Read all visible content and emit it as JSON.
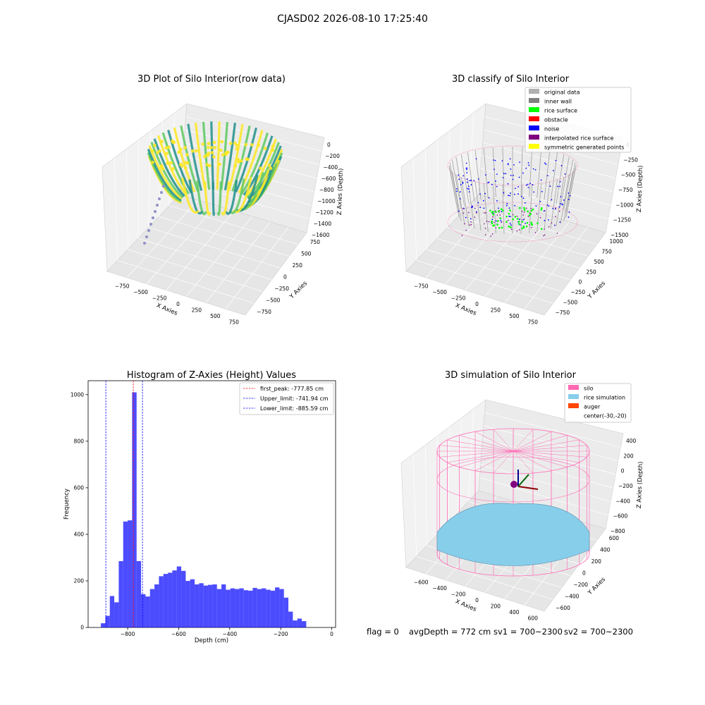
{
  "figure": {
    "title": "CJASD02 2026-08-10 17:25:40",
    "status": {
      "flag": "flag = 0",
      "avg_depth": "avgDepth = 772 cm",
      "sv1": "sv1 = 700~2300",
      "sv2": "sv2 = 700~2300"
    }
  },
  "panels": [
    {
      "id": "raw",
      "title": "3D Plot of Silo Interior(row data)",
      "xlabel": "X Axies",
      "ylabel": "Y Axies",
      "zlabel": "Z Axies (Depth)",
      "x_ticks": [
        "−750",
        "−500",
        "−250",
        "0",
        "250",
        "500",
        "750"
      ],
      "y_ticks": [
        "−750",
        "−500",
        "−250",
        "0",
        "250",
        "500",
        "750"
      ],
      "z_ticks": [
        "0",
        "−200",
        "−400",
        "−600",
        "−800",
        "−1000",
        "−1200",
        "−1400",
        "−1600"
      ],
      "colormap": [
        "#440154",
        "#21918c",
        "#5ec962",
        "#fde725"
      ]
    },
    {
      "id": "classify",
      "title": "3D classify of Silo Interior",
      "xlabel": "X Axies",
      "ylabel": "Y Axies",
      "zlabel": "Z Axies (Depth)",
      "x_ticks": [
        "−750",
        "−500",
        "−250",
        "0",
        "250",
        "500",
        "750"
      ],
      "y_ticks": [
        "−750",
        "−500",
        "−250",
        "0",
        "250",
        "500",
        "750",
        "1000"
      ],
      "z_ticks": [
        "0",
        "−250",
        "−500",
        "−750",
        "−1000",
        "−1250",
        "−1500"
      ],
      "legend": [
        {
          "label": "original data",
          "color": "#b0b0b0"
        },
        {
          "label": "inner wall",
          "color": "#808080"
        },
        {
          "label": "rice surface",
          "color": "#00ff00"
        },
        {
          "label": "obstacle",
          "color": "#ff0000"
        },
        {
          "label": "noise",
          "color": "#0000ff"
        },
        {
          "label": "interpolated rice surface",
          "color": "#800080"
        },
        {
          "label": "symmetric generated points",
          "color": "#ffff00"
        }
      ]
    },
    {
      "id": "simulation",
      "title": "3D simulation of Silo Interior",
      "xlabel": "X Axies",
      "ylabel": "Y Axies",
      "zlabel": "Z Axies (Depth)",
      "x_ticks": [
        "−600",
        "−400",
        "−200",
        "0",
        "200",
        "400",
        "600"
      ],
      "y_ticks": [
        "−600",
        "−400",
        "−200",
        "0",
        "200",
        "400",
        "600"
      ],
      "z_ticks": [
        "400",
        "200",
        "0",
        "−200",
        "−400",
        "−600",
        "−800"
      ],
      "legend": [
        {
          "label": "silo",
          "color": "#ff69b4"
        },
        {
          "label": "rice simulation",
          "color": "#87ceeb"
        },
        {
          "label": "auger",
          "color": "#ff4500"
        },
        {
          "label": "center(-30,-20)",
          "color": ""
        }
      ]
    }
  ],
  "chart_data": {
    "type": "bar",
    "title": "Histogram of Z-Axies (Height) Values",
    "xlabel": "Depth (cm)",
    "ylabel": "Frequency",
    "bar_color": "#0000ff",
    "xlim": [
      -955,
      15
    ],
    "ylim": [
      0,
      1060
    ],
    "x_ticks": [
      -800,
      -600,
      -400,
      -200,
      0
    ],
    "x_tick_labels": [
      "−800",
      "−600",
      "−400",
      "−200",
      "0"
    ],
    "y_ticks": [
      0,
      200,
      400,
      600,
      800,
      1000
    ],
    "bin_width": 17.5,
    "bin_start": -905,
    "values": [
      18,
      50,
      135,
      108,
      285,
      455,
      460,
      1010,
      285,
      143,
      133,
      165,
      185,
      220,
      230,
      235,
      245,
      262,
      243,
      200,
      207,
      185,
      190,
      180,
      183,
      185,
      165,
      185,
      162,
      168,
      165,
      168,
      160,
      158,
      170,
      165,
      168,
      162,
      158,
      172,
      165,
      128,
      68,
      30,
      38,
      27
    ],
    "lines": [
      {
        "name": "first_peak: -777.85 cm",
        "x": -777.85,
        "color": "#ff0000"
      },
      {
        "name": "Upper_limit: -741.94 cm",
        "x": -741.94,
        "color": "#0000ff"
      },
      {
        "name": "Lower_limit: -885.59 cm",
        "x": -885.59,
        "color": "#0000ff"
      }
    ]
  }
}
